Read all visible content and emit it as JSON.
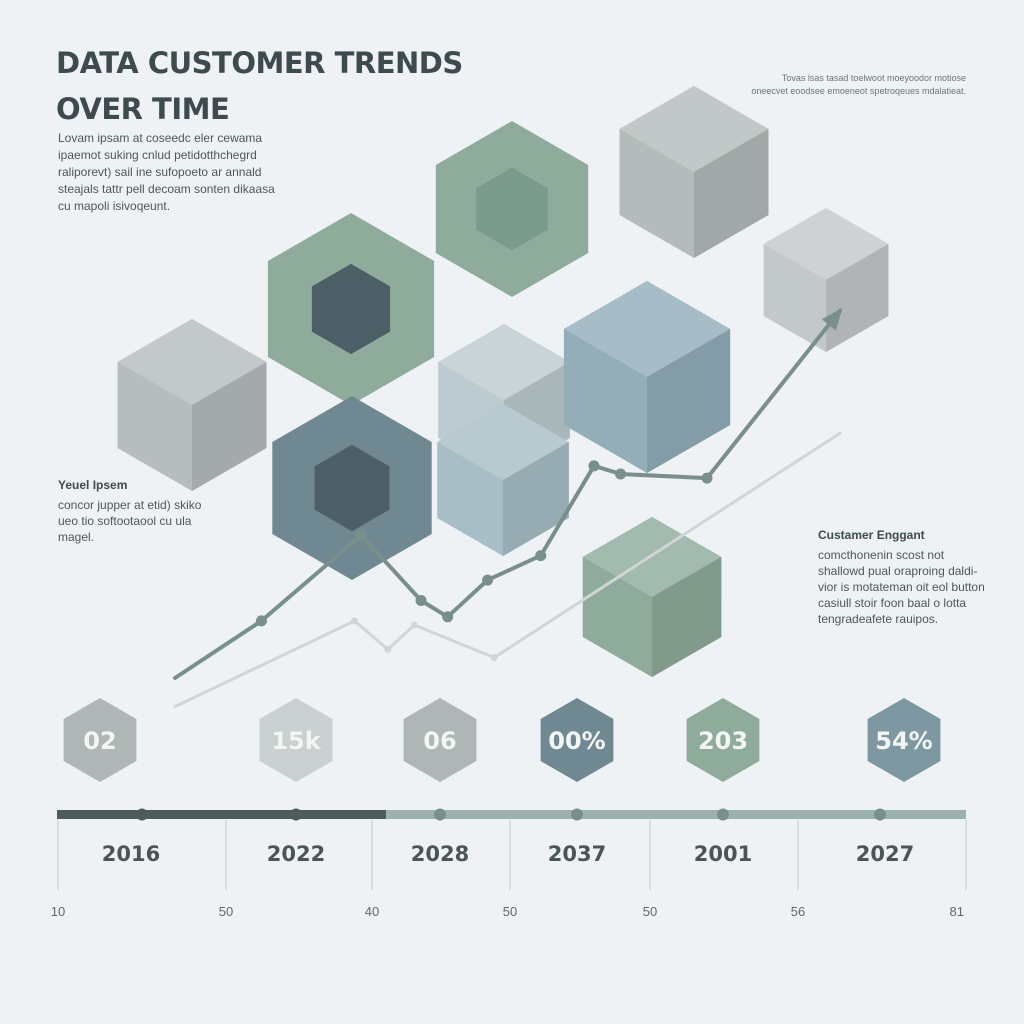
{
  "header": {
    "title": "DATA CUSTOMER TRENDS OVER TIME",
    "intro": "Lovam ipsam at coseedc eler cewama ipaemot suking cnlud petidotthchegrd raliporevt) sail ine sufopoeto ar annald steajals tattr pell decoam sonten dikaasa cu mapoli isivoqeunt.",
    "note": "Tovas lsas tasad toelwoot moeyoodor motiose oneecvet eoodsee emoeneot spetroqeues mdalatieat."
  },
  "annotations": {
    "left": {
      "title": "Yeuel Ipsem",
      "body": "concor jupper at etid) skiko ueo tio softootaool cu ula magel."
    },
    "right": {
      "title": "Custamer Enggant",
      "body": "comcthonenin scost not shallowd pual oraproing daldi-vior is motateman oit eol button casiull stoir foon baal o lotta tengradeafete rauipos."
    }
  },
  "colors": {
    "background": "#eef2f4",
    "sage": "#8fab9c",
    "sage_dark": "#7a9a8b",
    "slate": "#6f8891",
    "slate_dark": "#4d5f66",
    "grey": "#b6bdbd",
    "blue_grey": "#93adb9",
    "ink": "#3d4a4e",
    "line_primary": "#788f8b",
    "line_secondary": "#d0d6d8",
    "timeline_dark": "#4f5a5c",
    "timeline_light": "#9bb2ac"
  },
  "chart_data": {
    "type": "line",
    "title": "DATA CUSTOMER TRENDS OVER TIME",
    "xlabel": "",
    "ylabel": "",
    "grid": false,
    "legend": "none",
    "series": [
      {
        "values": [
          {
            "x": 0.0,
            "y": 0.0
          },
          {
            "x": 0.13,
            "y": 0.14
          },
          {
            "x": 0.28,
            "y": 0.35
          },
          {
            "x": 0.37,
            "y": 0.19
          },
          {
            "x": 0.41,
            "y": 0.15
          },
          {
            "x": 0.47,
            "y": 0.24
          },
          {
            "x": 0.55,
            "y": 0.3
          },
          {
            "x": 0.63,
            "y": 0.52
          },
          {
            "x": 0.67,
            "y": 0.5
          },
          {
            "x": 0.8,
            "y": 0.49
          },
          {
            "x": 1.0,
            "y": 0.9
          }
        ],
        "arrow_end": true
      },
      {
        "values": [
          {
            "x": 0.0,
            "y": -0.07
          },
          {
            "x": 0.27,
            "y": 0.14
          },
          {
            "x": 0.32,
            "y": 0.07
          },
          {
            "x": 0.36,
            "y": 0.13
          },
          {
            "x": 0.48,
            "y": 0.05
          },
          {
            "x": 1.0,
            "y": 0.6
          }
        ]
      }
    ],
    "stats": [
      {
        "label": "02",
        "tone": "grey"
      },
      {
        "label": "15k",
        "tone": "pale"
      },
      {
        "label": "06",
        "tone": "grey"
      },
      {
        "label": "00%",
        "tone": "slate_dark"
      },
      {
        "label": "203",
        "tone": "sage"
      },
      {
        "label": "54%",
        "tone": "slate"
      }
    ],
    "timeline_years": [
      "2016",
      "2022",
      "2028",
      "2037",
      "2001",
      "2027"
    ],
    "bottom_ticks": [
      "10",
      "50",
      "40",
      "50",
      "50",
      "56",
      "81"
    ]
  }
}
